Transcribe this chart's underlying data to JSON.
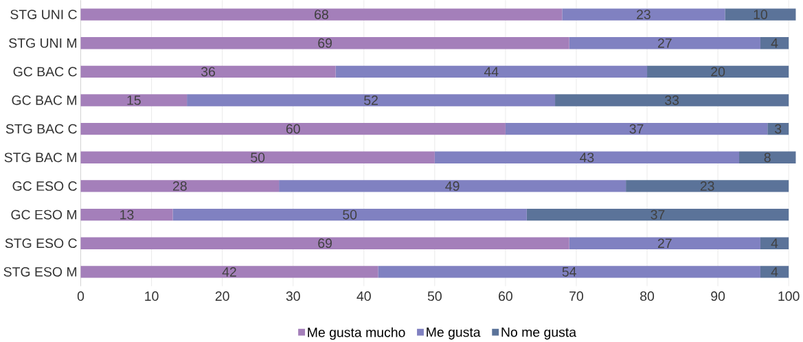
{
  "chart_data": {
    "type": "bar",
    "orientation": "horizontal",
    "stacked": true,
    "categories": [
      "STG UNI C",
      "STG UNI M",
      "GC BAC C",
      "GC BAC M",
      "STG BAC C",
      "STG BAC M",
      "GC ESO C",
      "GC ESO M",
      "STG ESO C",
      "STG ESO M"
    ],
    "series": [
      {
        "name": "Me gusta mucho",
        "color": "#a47fba",
        "values": [
          68,
          69,
          36,
          15,
          60,
          50,
          28,
          13,
          69,
          42
        ]
      },
      {
        "name": "Me gusta",
        "color": "#8081c1",
        "values": [
          23,
          27,
          44,
          52,
          37,
          43,
          49,
          50,
          27,
          54
        ]
      },
      {
        "name": "No me gusta",
        "color": "#5b7399",
        "values": [
          10,
          4,
          20,
          33,
          3,
          8,
          23,
          37,
          4,
          4
        ]
      }
    ],
    "xlim": [
      0,
      101
    ],
    "xticks": [
      0,
      10,
      20,
      30,
      40,
      50,
      60,
      70,
      80,
      90,
      100
    ],
    "grid": "x",
    "legend": "bottom",
    "data_labels": true
  }
}
